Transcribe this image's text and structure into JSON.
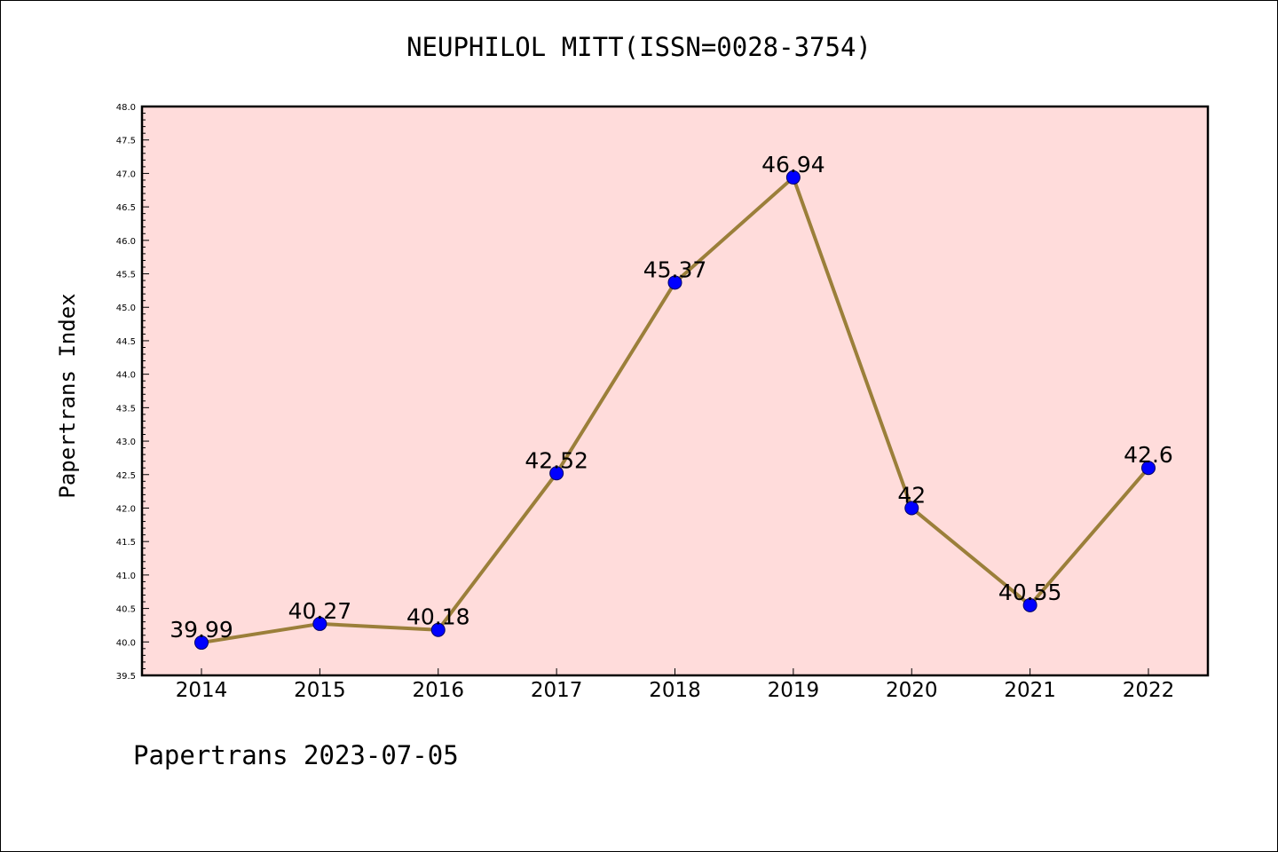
{
  "chart_data": {
    "type": "line",
    "title": "NEUPHILOL MITT(ISSN=0028-3754)",
    "xlabel": "",
    "ylabel": "Papertrans Index",
    "categories": [
      "2014",
      "2015",
      "2016",
      "2017",
      "2018",
      "2019",
      "2020",
      "2021",
      "2022"
    ],
    "values": [
      39.99,
      40.27,
      40.18,
      42.52,
      45.37,
      46.94,
      42,
      40.55,
      42.6
    ],
    "data_labels": [
      "39.99",
      "40.27",
      "40.18",
      "42.52",
      "45.37",
      "46.94",
      "42",
      "40.55",
      "42.6"
    ],
    "ylim": [
      39.5,
      48.0
    ],
    "yticks": [
      "39.5",
      "40.0",
      "40.5",
      "41.0",
      "41.5",
      "42.0",
      "42.5",
      "43.0",
      "43.5",
      "44.0",
      "44.5",
      "45.0",
      "45.5",
      "46.0",
      "46.5",
      "47.0",
      "47.5",
      "48.0"
    ],
    "grid": false,
    "colors": {
      "plot_background": "#ffdcdb",
      "line": "#9b7f3a",
      "marker": "#0000ff",
      "axes": "#000000"
    }
  },
  "footer": "Papertrans 2023-07-05"
}
